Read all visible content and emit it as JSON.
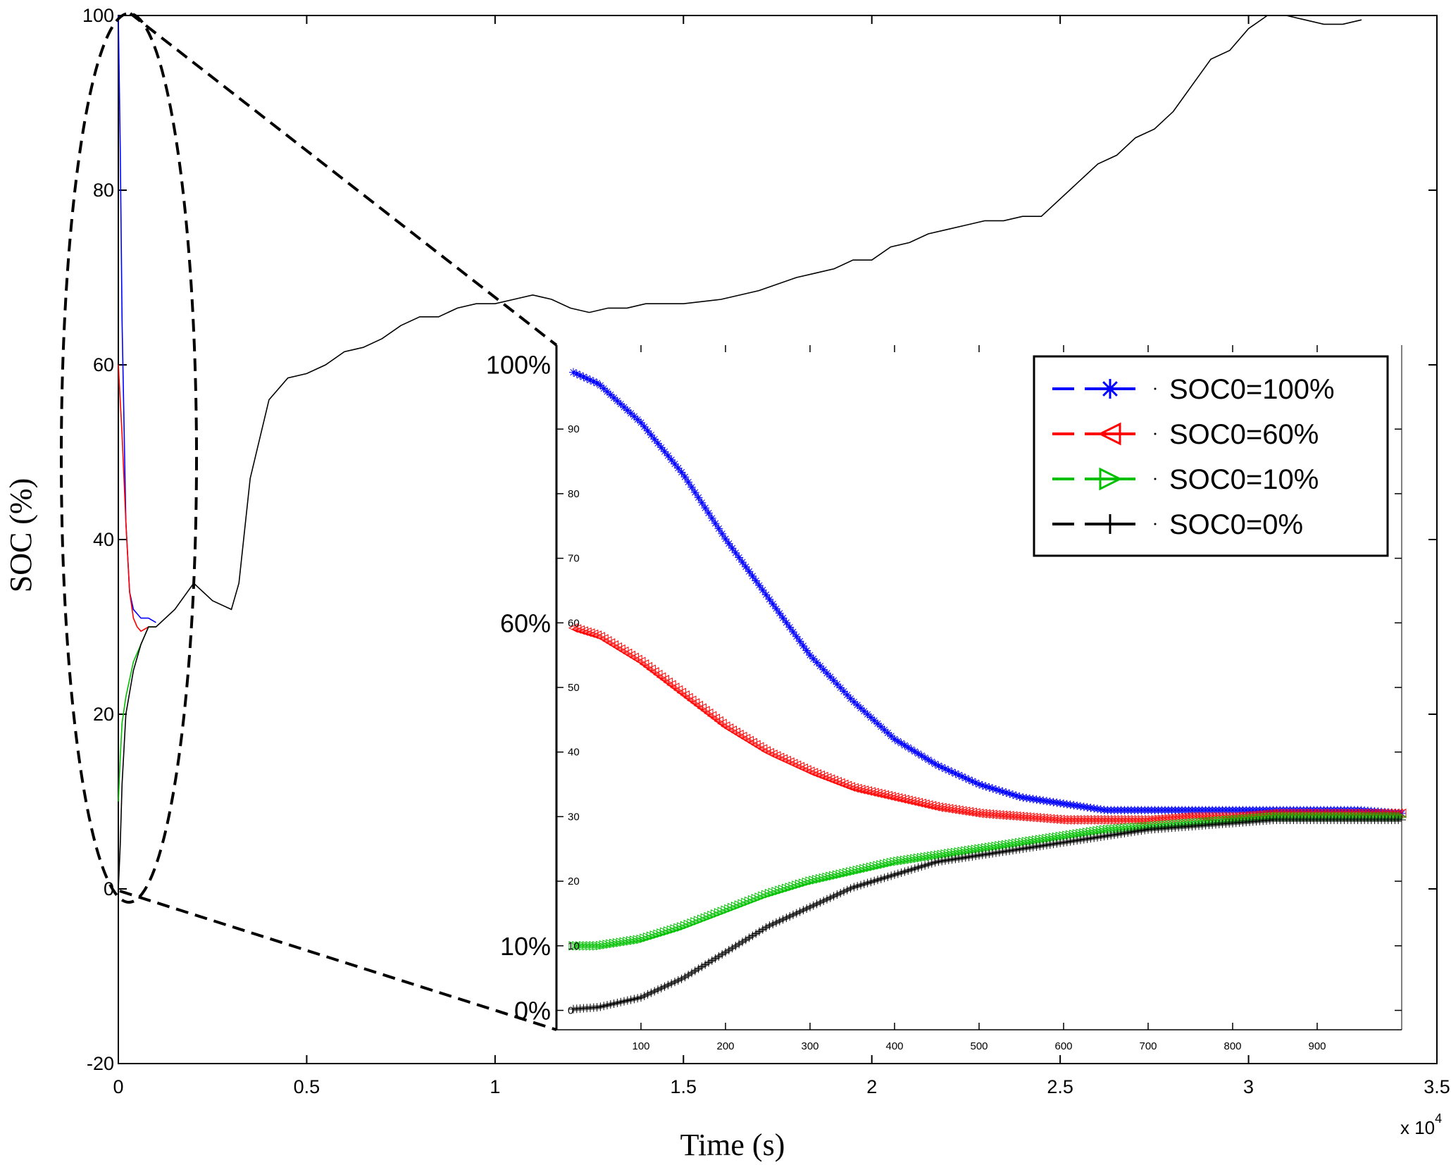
{
  "chart_data": [
    {
      "id": "main",
      "type": "line",
      "title": "",
      "xlabel": "Time (s)",
      "ylabel": "SOC (%)",
      "x_multiplier_label": "x 10",
      "x_multiplier_exponent": "4",
      "xlim": [
        0,
        3.5
      ],
      "ylim": [
        -20,
        100
      ],
      "xticks": [
        0,
        0.5,
        1,
        1.5,
        2,
        2.5,
        3,
        3.5
      ],
      "xtick_labels": [
        "0",
        "0.5",
        "1",
        "1.5",
        "2",
        "2.5",
        "3",
        "3.5"
      ],
      "yticks": [
        -20,
        0,
        20,
        40,
        60,
        80,
        100
      ],
      "ytick_labels": [
        "-20",
        "0",
        "20",
        "40",
        "60",
        "80",
        "100"
      ],
      "grid": false,
      "series": [
        {
          "name": "SOC0=100%",
          "color": "#0000ff",
          "x": [
            0,
            0.005,
            0.01,
            0.02,
            0.03,
            0.04,
            0.05,
            0.06,
            0.08,
            0.1
          ],
          "y": [
            100,
            85,
            65,
            42,
            34,
            32,
            31.5,
            31,
            31,
            30.5
          ]
        },
        {
          "name": "SOC0=60%",
          "color": "#ff0000",
          "x": [
            0,
            0.01,
            0.02,
            0.03,
            0.04,
            0.05,
            0.06,
            0.08,
            0.1
          ],
          "y": [
            60,
            52,
            42,
            34,
            31,
            30,
            29.5,
            30,
            30
          ]
        },
        {
          "name": "SOC0=10%",
          "color": "#00c000",
          "x": [
            0,
            0.005,
            0.01,
            0.02,
            0.04,
            0.06,
            0.08,
            0.1
          ],
          "y": [
            10,
            15,
            19,
            22,
            26,
            28,
            30,
            30
          ]
        },
        {
          "name": "SOC0=0%",
          "color": "#000000",
          "x": [
            0,
            0.005,
            0.01,
            0.02,
            0.04,
            0.06,
            0.08,
            0.1,
            0.15,
            0.2,
            0.25,
            0.3,
            0.32,
            0.35,
            0.4,
            0.45,
            0.5,
            0.55,
            0.6,
            0.65,
            0.7,
            0.75,
            0.8,
            0.85,
            0.9,
            0.95,
            1.0,
            1.05,
            1.1,
            1.15,
            1.2,
            1.25,
            1.3,
            1.35,
            1.4,
            1.5,
            1.6,
            1.7,
            1.8,
            1.85,
            1.9,
            1.95,
            2.0,
            2.05,
            2.1,
            2.15,
            2.2,
            2.25,
            2.3,
            2.35,
            2.4,
            2.45,
            2.5,
            2.55,
            2.6,
            2.65,
            2.7,
            2.75,
            2.8,
            2.85,
            2.9,
            2.95,
            3.0,
            3.05,
            3.1,
            3.15,
            3.2,
            3.25,
            3.3
          ],
          "y": [
            0,
            5,
            12,
            20,
            25,
            28,
            30,
            30,
            32,
            35,
            33,
            32,
            35,
            47,
            56,
            58.5,
            59,
            60,
            61.5,
            62,
            63,
            64.5,
            65.5,
            65.5,
            66.5,
            67,
            67,
            67.5,
            68,
            67.5,
            66.5,
            66,
            66.5,
            66.5,
            67,
            67,
            67.5,
            68.5,
            70,
            70.5,
            71,
            72,
            72,
            73.5,
            74,
            75,
            75.5,
            76,
            76.5,
            76.5,
            77,
            77,
            79,
            81,
            83,
            84,
            86,
            87,
            89,
            92,
            95,
            96,
            98.5,
            100,
            100,
            99.5,
            99,
            99,
            99.5
          ]
        }
      ],
      "annotations": [
        "zoom-ellipse-around-initial-transient"
      ]
    },
    {
      "id": "inset",
      "type": "line",
      "xlim": [
        0,
        1000
      ],
      "ylim": [
        -3,
        103
      ],
      "xticks": [
        100,
        200,
        300,
        400,
        500,
        600,
        700,
        800,
        900
      ],
      "xtick_labels": [
        "100",
        "200",
        "300",
        "400",
        "500",
        "600",
        "700",
        "800",
        "900"
      ],
      "yticks": [
        0,
        10,
        20,
        30,
        40,
        50,
        60,
        70,
        80,
        90
      ],
      "ytick_labels": [
        "0",
        "10",
        "20",
        "30",
        "40",
        "50",
        "60",
        "70",
        "80",
        "90"
      ],
      "callouts": [
        {
          "text": "100%",
          "value": 100
        },
        {
          "text": "60%",
          "value": 60
        },
        {
          "text": "10%",
          "value": 10
        },
        {
          "text": "0%",
          "value": 0
        }
      ],
      "legend": {
        "position": "top-right",
        "entries": [
          {
            "label": "SOC0=100%",
            "color": "#0000ff",
            "marker": "star"
          },
          {
            "label": "SOC0=60%",
            "color": "#ff0000",
            "marker": "triangle-left"
          },
          {
            "label": "SOC0=10%",
            "color": "#00c000",
            "marker": "triangle-right"
          },
          {
            "label": "SOC0=0%",
            "color": "#000000",
            "marker": "plus"
          }
        ]
      },
      "series": [
        {
          "name": "SOC0=100%",
          "color": "#0000ff",
          "x": [
            0,
            50,
            100,
            150,
            200,
            250,
            300,
            350,
            400,
            450,
            500,
            550,
            600,
            650,
            700,
            750,
            800,
            850,
            900,
            950,
            1000
          ],
          "y": [
            100,
            97,
            91,
            83,
            73,
            64,
            55,
            48,
            42,
            38,
            35,
            33,
            32,
            31,
            31,
            31,
            31,
            31,
            31,
            31,
            30.5
          ]
        },
        {
          "name": "SOC0=60%",
          "color": "#ff0000",
          "x": [
            0,
            50,
            100,
            150,
            200,
            250,
            300,
            350,
            400,
            450,
            500,
            550,
            600,
            650,
            700,
            750,
            800,
            850,
            900,
            950,
            1000
          ],
          "y": [
            60,
            58,
            54,
            49,
            44,
            40,
            37,
            34.5,
            33,
            31.5,
            30.5,
            30,
            29.5,
            29.5,
            29.5,
            30,
            30,
            30.5,
            30.5,
            30.5,
            30.5
          ]
        },
        {
          "name": "SOC0=10%",
          "color": "#00c000",
          "x": [
            0,
            50,
            100,
            150,
            200,
            250,
            300,
            350,
            400,
            450,
            500,
            550,
            600,
            650,
            700,
            750,
            800,
            850,
            900,
            950,
            1000
          ],
          "y": [
            10,
            10,
            11,
            13,
            15.5,
            18,
            20,
            21.5,
            23,
            24,
            25,
            26,
            27,
            28,
            28.5,
            29,
            29.5,
            30,
            30,
            30,
            30
          ]
        },
        {
          "name": "SOC0=0%",
          "color": "#000000",
          "x": [
            0,
            50,
            100,
            150,
            200,
            250,
            300,
            350,
            400,
            450,
            500,
            550,
            600,
            650,
            700,
            750,
            800,
            850,
            900,
            950,
            1000
          ],
          "y": [
            0,
            0.5,
            2,
            5,
            9,
            13,
            16,
            19,
            21,
            23,
            24,
            25,
            26,
            27,
            28,
            28.5,
            29,
            29.5,
            29.5,
            29.5,
            29.5
          ]
        }
      ]
    }
  ]
}
